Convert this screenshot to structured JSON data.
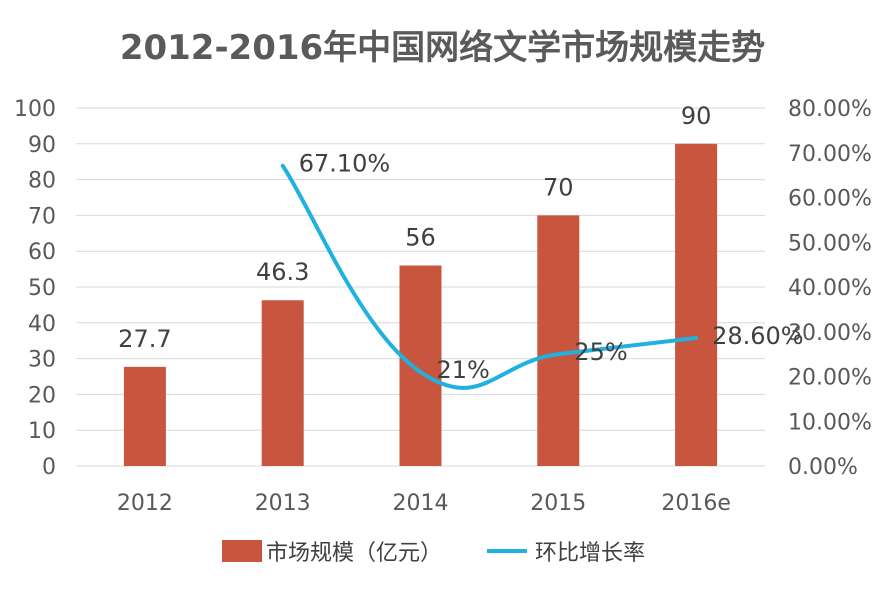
{
  "chart_data": {
    "type": "bar",
    "title": "2012-2016年中国网络文学市场规模走势",
    "categories": [
      "2012",
      "2013",
      "2014",
      "2015",
      "2016e"
    ],
    "series": [
      {
        "name": "市场规模（亿元）",
        "type": "bar",
        "axis": "left",
        "values": [
          27.7,
          46.3,
          56,
          70,
          90
        ],
        "labels": [
          "27.7",
          "46.3",
          "56",
          "70",
          "90"
        ],
        "color": "#C8553D"
      },
      {
        "name": "环比增长率",
        "type": "line",
        "axis": "right",
        "values": [
          null,
          67.1,
          21,
          25,
          28.6
        ],
        "labels": [
          "",
          "67.10%",
          "21%",
          "25%",
          "28.60%"
        ],
        "color": "#1FB1E0"
      }
    ],
    "y_left": {
      "min": 0,
      "max": 100,
      "step": 10,
      "ticks": [
        "0",
        "10",
        "20",
        "30",
        "40",
        "50",
        "60",
        "70",
        "80",
        "90",
        "100"
      ]
    },
    "y_right": {
      "min": 0,
      "max": 80,
      "step": 10,
      "ticks": [
        "0.00%",
        "10.00%",
        "20.00%",
        "30.00%",
        "40.00%",
        "50.00%",
        "60.00%",
        "70.00%",
        "80.00%"
      ]
    },
    "grid": true,
    "legend_position": "bottom"
  }
}
